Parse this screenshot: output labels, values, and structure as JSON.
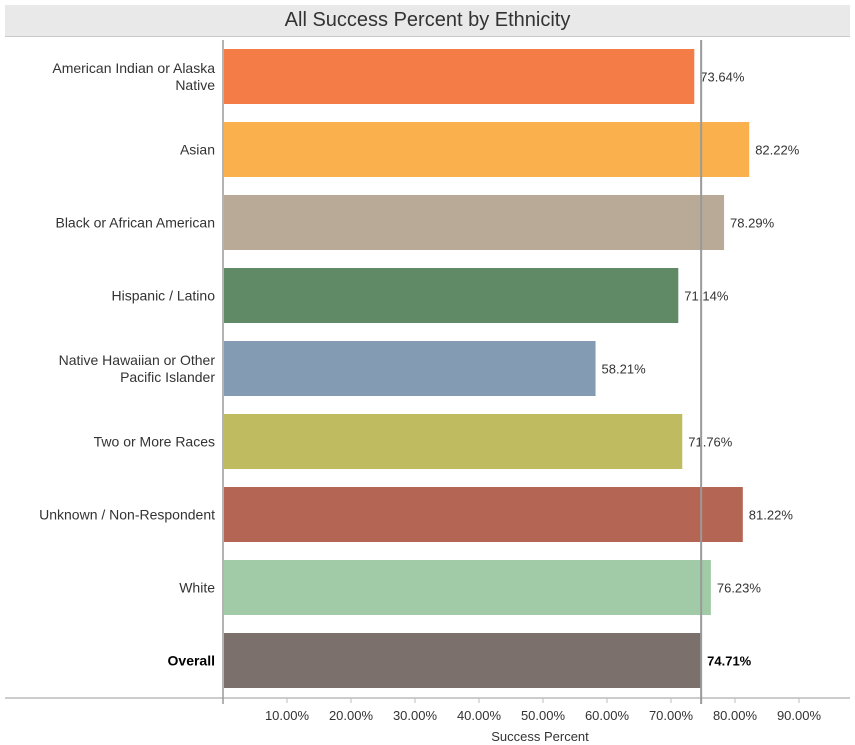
{
  "chart_data": {
    "type": "bar",
    "orientation": "horizontal",
    "title": "All Success Percent by Ethnicity",
    "xlabel": "Success Percent",
    "ylabel": "",
    "xlim": [
      0,
      0.9
    ],
    "xticks": [
      0.1,
      0.2,
      0.3,
      0.4,
      0.5,
      0.6,
      0.7,
      0.8,
      0.9
    ],
    "xtick_labels": [
      "10.00%",
      "20.00%",
      "30.00%",
      "40.00%",
      "50.00%",
      "60.00%",
      "70.00%",
      "80.00%",
      "90.00%"
    ],
    "reference_line": 0.7471,
    "grid": false,
    "categories": [
      [
        "American Indian or Alaska",
        "Native"
      ],
      [
        "Asian"
      ],
      [
        "Black or African American"
      ],
      [
        "Hispanic / Latino"
      ],
      [
        "Native Hawaiian or Other",
        "Pacific Islander"
      ],
      [
        "Two or More Races"
      ],
      [
        "Unknown / Non-Respondent"
      ],
      [
        "White"
      ],
      [
        "Overall"
      ]
    ],
    "values": [
      0.7364,
      0.8222,
      0.7829,
      0.7114,
      0.5821,
      0.7176,
      0.8122,
      0.7623,
      0.7471
    ],
    "value_labels": [
      "73.64%",
      "82.22%",
      "78.29%",
      "71.14%",
      "58.21%",
      "71.76%",
      "81.22%",
      "76.23%",
      "74.71%"
    ],
    "colors": [
      "#f47c46",
      "#fbb04e",
      "#b9aa97",
      "#5f8a65",
      "#839bb3",
      "#bfbb60",
      "#b56554",
      "#a0cba6",
      "#7b706b"
    ],
    "bold_categories": [
      "Overall"
    ]
  }
}
